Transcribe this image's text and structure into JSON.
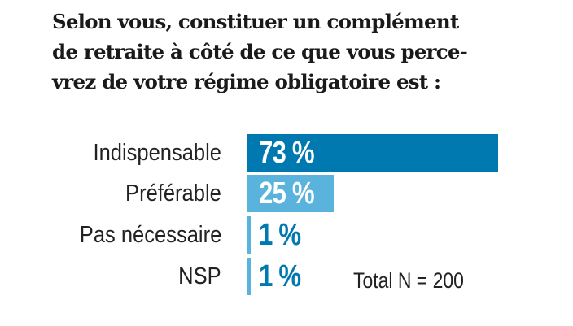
{
  "chart_data": {
    "type": "bar",
    "orientation": "horizontal",
    "title_lines": [
      "Selon vous, constituer un complément",
      "de retraite à côté de ce que vous perce-",
      "vrez de votre régime obligatoire est :"
    ],
    "categories": [
      "Indispensable",
      "Préférable",
      "Pas nécessaire",
      "NSP"
    ],
    "values": [
      73,
      25,
      1,
      1
    ],
    "value_labels": [
      "73 %",
      "25 %",
      "1 %",
      "1 %"
    ],
    "bar_colors": [
      "#0079b1",
      "#5ab3dc",
      "#5ab3dc",
      "#5ab3dc"
    ],
    "label_colors": [
      "#ffffff",
      "#ffffff",
      "#0079b1",
      "#0079b1"
    ],
    "xlim": [
      0,
      100
    ],
    "annotation": "Total  N = 200",
    "grid": false,
    "legend": "none"
  }
}
